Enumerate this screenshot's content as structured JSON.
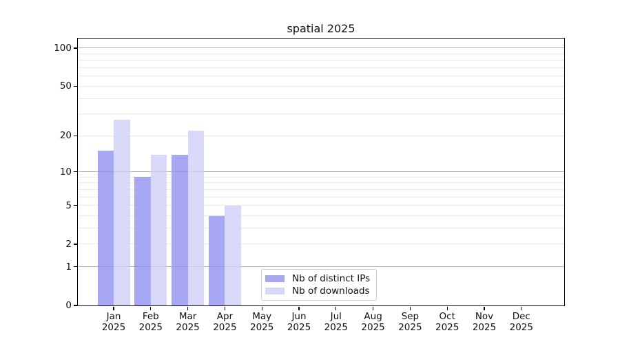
{
  "title": "spatial 2025",
  "legend": {
    "items": [
      {
        "label": "Nb of distinct IPs",
        "color": "#a7a7f0"
      },
      {
        "label": "Nb of downloads",
        "color": "#d8d8f8"
      }
    ]
  },
  "chart_data": {
    "type": "bar",
    "title": "spatial 2025",
    "categories": [
      "Jan 2025",
      "Feb 2025",
      "Mar 2025",
      "Apr 2025",
      "May 2025",
      "Jun 2025",
      "Jul 2025",
      "Aug 2025",
      "Sep 2025",
      "Oct 2025",
      "Nov 2025",
      "Dec 2025"
    ],
    "months": [
      "Jan",
      "Feb",
      "Mar",
      "Apr",
      "May",
      "Jun",
      "Jul",
      "Aug",
      "Sep",
      "Oct",
      "Nov",
      "Dec"
    ],
    "year": "2025",
    "series": [
      {
        "name": "Nb of distinct IPs",
        "values": [
          15,
          9,
          14,
          4,
          0,
          0,
          0,
          0,
          0,
          0,
          0,
          0
        ],
        "color": "#a7a7f0",
        "fill_rgba": "rgba(143,143,240,0.79)"
      },
      {
        "name": "Nb of downloads",
        "values": [
          27,
          14,
          22,
          5,
          0,
          0,
          0,
          0,
          0,
          0,
          0,
          0
        ],
        "color": "#d8d8f8",
        "fill_rgba": "rgba(205,205,246,0.79)"
      }
    ],
    "xlabel": "",
    "ylabel": "",
    "yscale": "log10(value+1)",
    "ylim": [
      0,
      120
    ],
    "yticks": [
      100,
      50,
      20,
      10,
      5,
      2,
      1,
      0
    ],
    "major_gridlines": [
      1,
      10,
      100
    ],
    "minor_gridlines": [
      2,
      3,
      4,
      5,
      6,
      7,
      8,
      9,
      20,
      30,
      40,
      50,
      60,
      70,
      80,
      90
    ],
    "grid": true,
    "legend_position": "bottom-center-inside",
    "grid_major_color": "#b0b0b0",
    "grid_minor_color": "#e9e9e9"
  }
}
